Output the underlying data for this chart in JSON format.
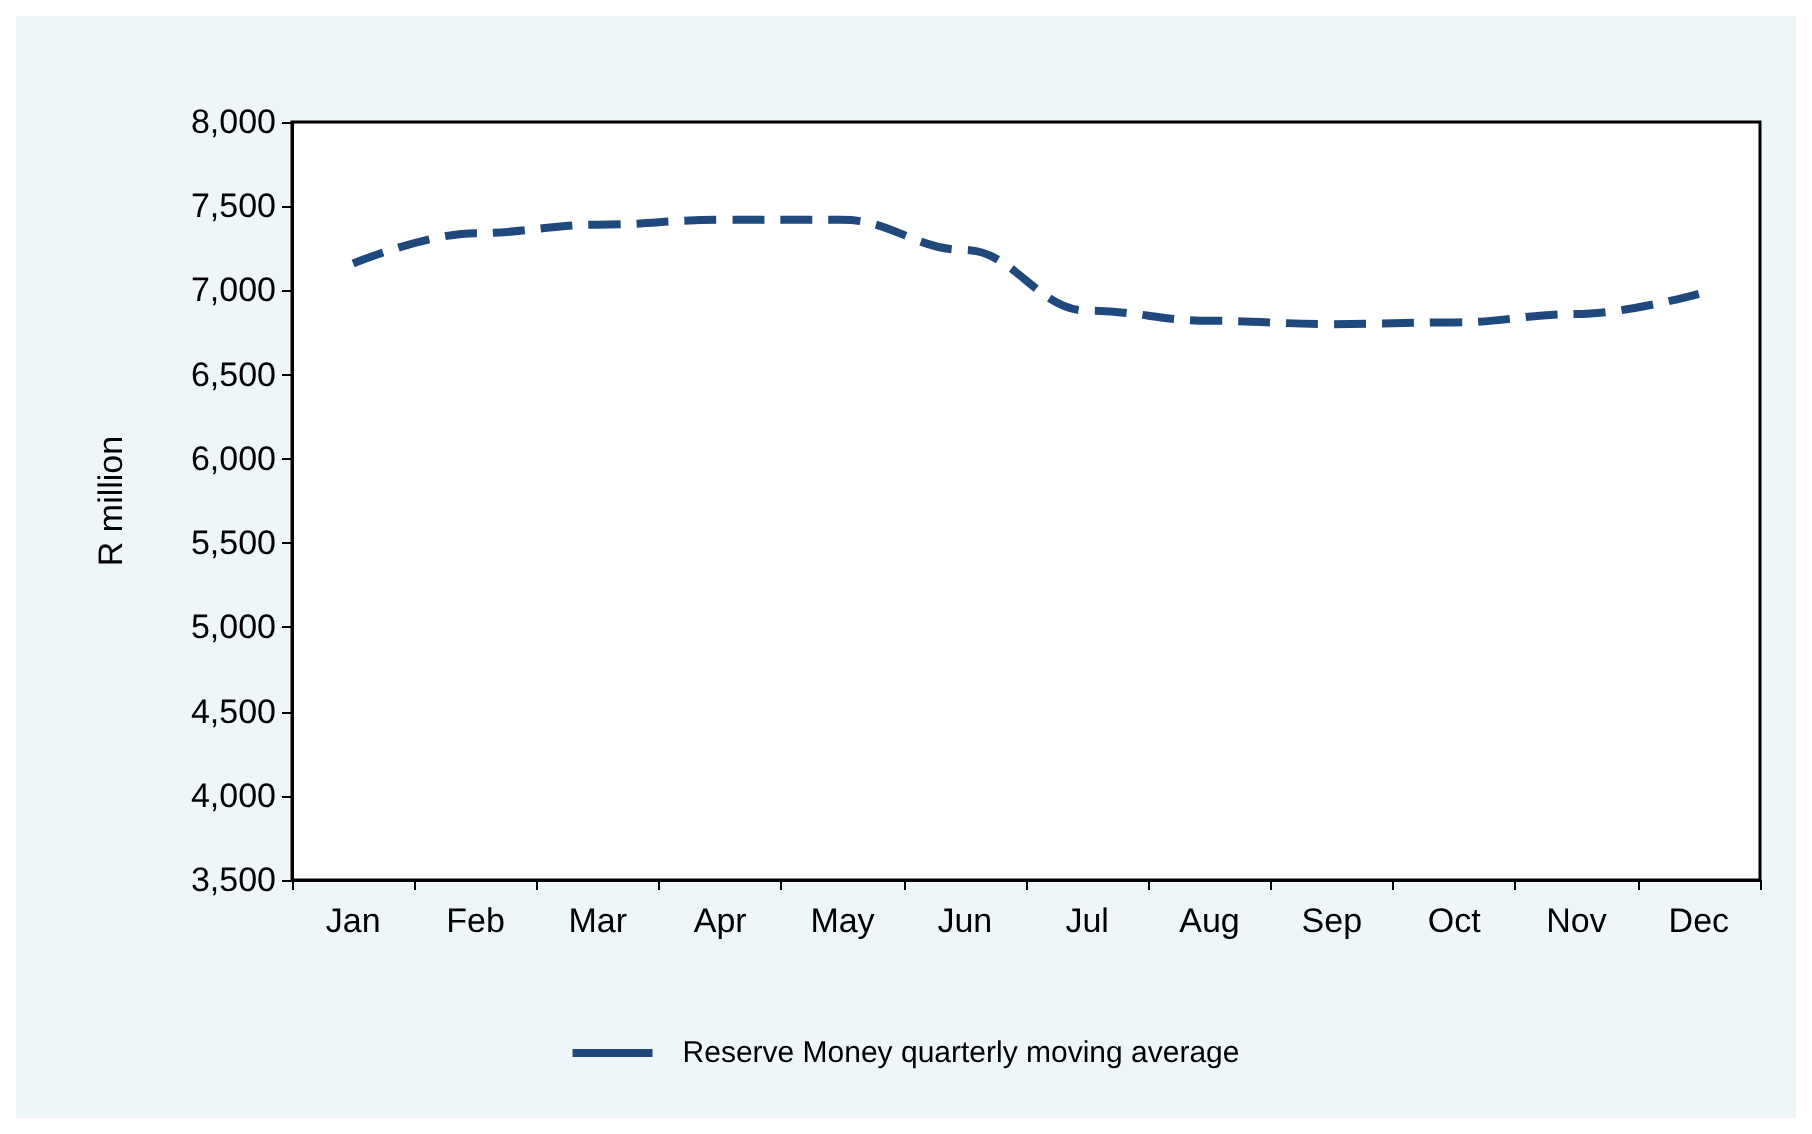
{
  "chart_data": {
    "type": "line",
    "ylabel": "R million",
    "categories": [
      "Jan",
      "Feb",
      "Mar",
      "Apr",
      "May",
      "Jun",
      "Jul",
      "Aug",
      "Sep",
      "Oct",
      "Nov",
      "Dec"
    ],
    "series": [
      {
        "name": "Reserve Money quarterly moving average",
        "color": "#1f497d",
        "values": [
          7160,
          7340,
          7390,
          7420,
          7420,
          7240,
          6880,
          6820,
          6800,
          6810,
          6860,
          6980
        ]
      }
    ],
    "ylim": [
      3500,
      8000
    ],
    "yticks": [
      {
        "value": 3500,
        "label": "3,500"
      },
      {
        "value": 4000,
        "label": "4,000"
      },
      {
        "value": 4500,
        "label": "4,500"
      },
      {
        "value": 5000,
        "label": "5,000"
      },
      {
        "value": 5500,
        "label": "5,500"
      },
      {
        "value": 6000,
        "label": "6,000"
      },
      {
        "value": 6500,
        "label": "6,500"
      },
      {
        "value": 7000,
        "label": "7,000"
      },
      {
        "value": 7500,
        "label": "7,500"
      },
      {
        "value": 8000,
        "label": "8,000"
      }
    ],
    "grid": false,
    "legend": "bottom",
    "marker": "none",
    "line_style": "dashed"
  }
}
